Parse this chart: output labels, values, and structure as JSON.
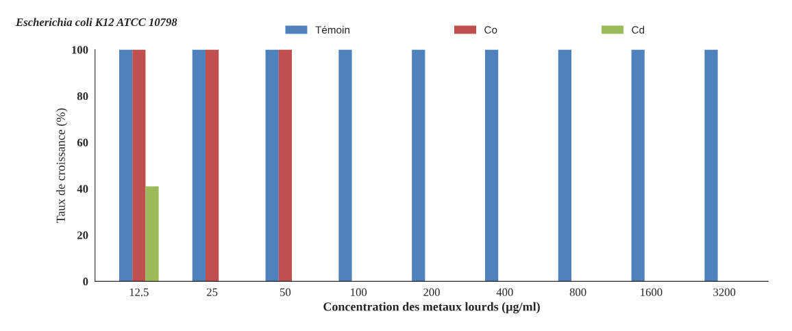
{
  "chart_data": {
    "type": "bar",
    "title": "Escherichia coli K12 ATCC 10798",
    "xlabel": "Concentration des metaux lourds (µg/ml)",
    "ylabel": "Taux de croissance (%)",
    "categories": [
      "12.5",
      "25",
      "50",
      "100",
      "200",
      "400",
      "800",
      "1600",
      "3200"
    ],
    "series": [
      {
        "name": "Témoin",
        "color": "#4f81bd",
        "values": [
          100,
          100,
          100,
          100,
          100,
          100,
          100,
          100,
          100
        ]
      },
      {
        "name": "Co",
        "color": "#c0504d",
        "values": [
          100,
          100,
          100,
          0,
          0,
          0,
          0,
          0,
          0
        ]
      },
      {
        "name": "Cd",
        "color": "#9bbb59",
        "values": [
          41,
          0,
          0,
          0,
          0,
          0,
          0,
          0,
          0
        ]
      }
    ],
    "ylim": [
      0,
      100
    ],
    "yticks": [
      0,
      20,
      40,
      60,
      80,
      100
    ],
    "grid": false,
    "legend": "top"
  }
}
